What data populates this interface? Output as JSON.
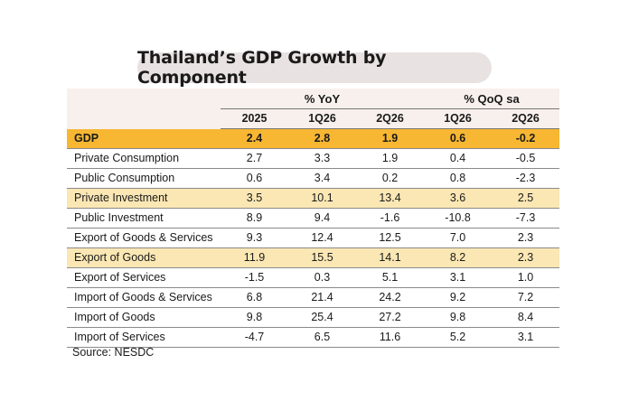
{
  "title": "Thailand’s GDP Growth by Component",
  "table": {
    "group_headers": [
      "% YoY",
      "% QoQ sa"
    ],
    "columns": [
      "2025",
      "1Q26",
      "2Q26",
      "1Q26",
      "2Q26"
    ],
    "rows": [
      {
        "label": "GDP",
        "values": [
          "2.4",
          "2.8",
          "1.9",
          "0.6",
          "-0.2"
        ]
      },
      {
        "label": "Private Consumption",
        "values": [
          "2.7",
          "3.3",
          "1.9",
          "0.4",
          "-0.5"
        ]
      },
      {
        "label": "Public Consumption",
        "values": [
          "0.6",
          "3.4",
          "0.2",
          "0.8",
          "-2.3"
        ]
      },
      {
        "label": "Private Investment",
        "values": [
          "3.5",
          "10.1",
          "13.4",
          "3.6",
          "2.5"
        ]
      },
      {
        "label": "Public Investment",
        "values": [
          "8.9",
          "9.4",
          "-1.6",
          "-10.8",
          "-7.3"
        ]
      },
      {
        "label": "Export of Goods & Services",
        "values": [
          "9.3",
          "12.4",
          "12.5",
          "7.0",
          "2.3"
        ]
      },
      {
        "label": "Export of Goods",
        "values": [
          "11.9",
          "15.5",
          "14.1",
          "8.2",
          "2.3"
        ]
      },
      {
        "label": "Export of Services",
        "values": [
          "-1.5",
          "0.3",
          "5.1",
          "3.1",
          "1.0"
        ]
      },
      {
        "label": "Import of Goods & Services",
        "values": [
          "6.8",
          "21.4",
          "24.2",
          "9.2",
          "7.2"
        ]
      },
      {
        "label": "Import of Goods",
        "values": [
          "9.8",
          "25.4",
          "27.2",
          "9.8",
          "8.4"
        ]
      },
      {
        "label": "Import of Services",
        "values": [
          "-4.7",
          "6.5",
          "11.6",
          "5.2",
          "3.1"
        ]
      }
    ]
  },
  "source": "Source: NESDC",
  "colors": {
    "title_pill": "#e9e2e2",
    "header_bg": "#f7f0ec",
    "gdp_row": "#f7b733",
    "highlight_row": "#fbe7b4"
  }
}
